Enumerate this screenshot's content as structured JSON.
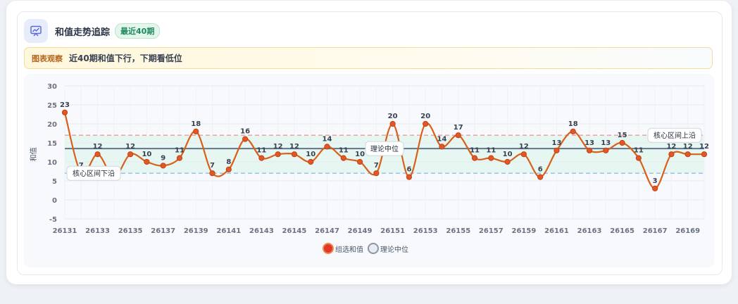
{
  "header": {
    "title": "和值走势追踪",
    "badge": "最近40期"
  },
  "observation": {
    "label": "图表观察",
    "text": "近40期和值下行，下期看低位"
  },
  "legend": {
    "series_label": "组选和值",
    "median_label": "理论中位"
  },
  "chart_data": {
    "type": "line",
    "ylabel": "和值",
    "ylim": [
      -5,
      30
    ],
    "yticks": [
      -5,
      0,
      5,
      10,
      15,
      20,
      25,
      30
    ],
    "x": [
      26131,
      26132,
      26133,
      26134,
      26135,
      26136,
      26137,
      26138,
      26139,
      26140,
      26141,
      26142,
      26143,
      26144,
      26145,
      26146,
      26147,
      26148,
      26149,
      26150,
      26151,
      26152,
      26153,
      26154,
      26155,
      26156,
      26157,
      26158,
      26159,
      26160,
      26161,
      26162,
      26163,
      26164,
      26165,
      26166,
      26167,
      26168,
      26169,
      26170
    ],
    "xtick_labels": [
      "26131",
      "26133",
      "26135",
      "26137",
      "26139",
      "26141",
      "26143",
      "26145",
      "26147",
      "26149",
      "26151",
      "26153",
      "26155",
      "26157",
      "26159",
      "26161",
      "26163",
      "26165",
      "26167",
      "26169"
    ],
    "series": [
      {
        "name": "组选和值",
        "color": "#d9601a",
        "values": [
          23,
          7,
          12,
          6,
          12,
          10,
          9,
          11,
          18,
          7,
          8,
          16,
          11,
          12,
          12,
          10,
          14,
          11,
          10,
          7,
          20,
          6,
          20,
          14,
          17,
          11,
          11,
          10,
          12,
          6,
          13,
          18,
          13,
          13,
          15,
          11,
          3,
          12,
          12,
          12
        ]
      }
    ],
    "reference_lines": [
      {
        "name": "理论中位",
        "value": 13.5,
        "color": "#64748b"
      },
      {
        "name": "核心区间上沿",
        "value": 17,
        "color": "#ef9a9a"
      },
      {
        "name": "核心区间下沿",
        "value": 7,
        "color": "#90bde8"
      }
    ],
    "band": {
      "from": 7,
      "to": 17,
      "color": "#e3f5ee"
    },
    "grid": true,
    "legend_position": "bottom-center"
  }
}
